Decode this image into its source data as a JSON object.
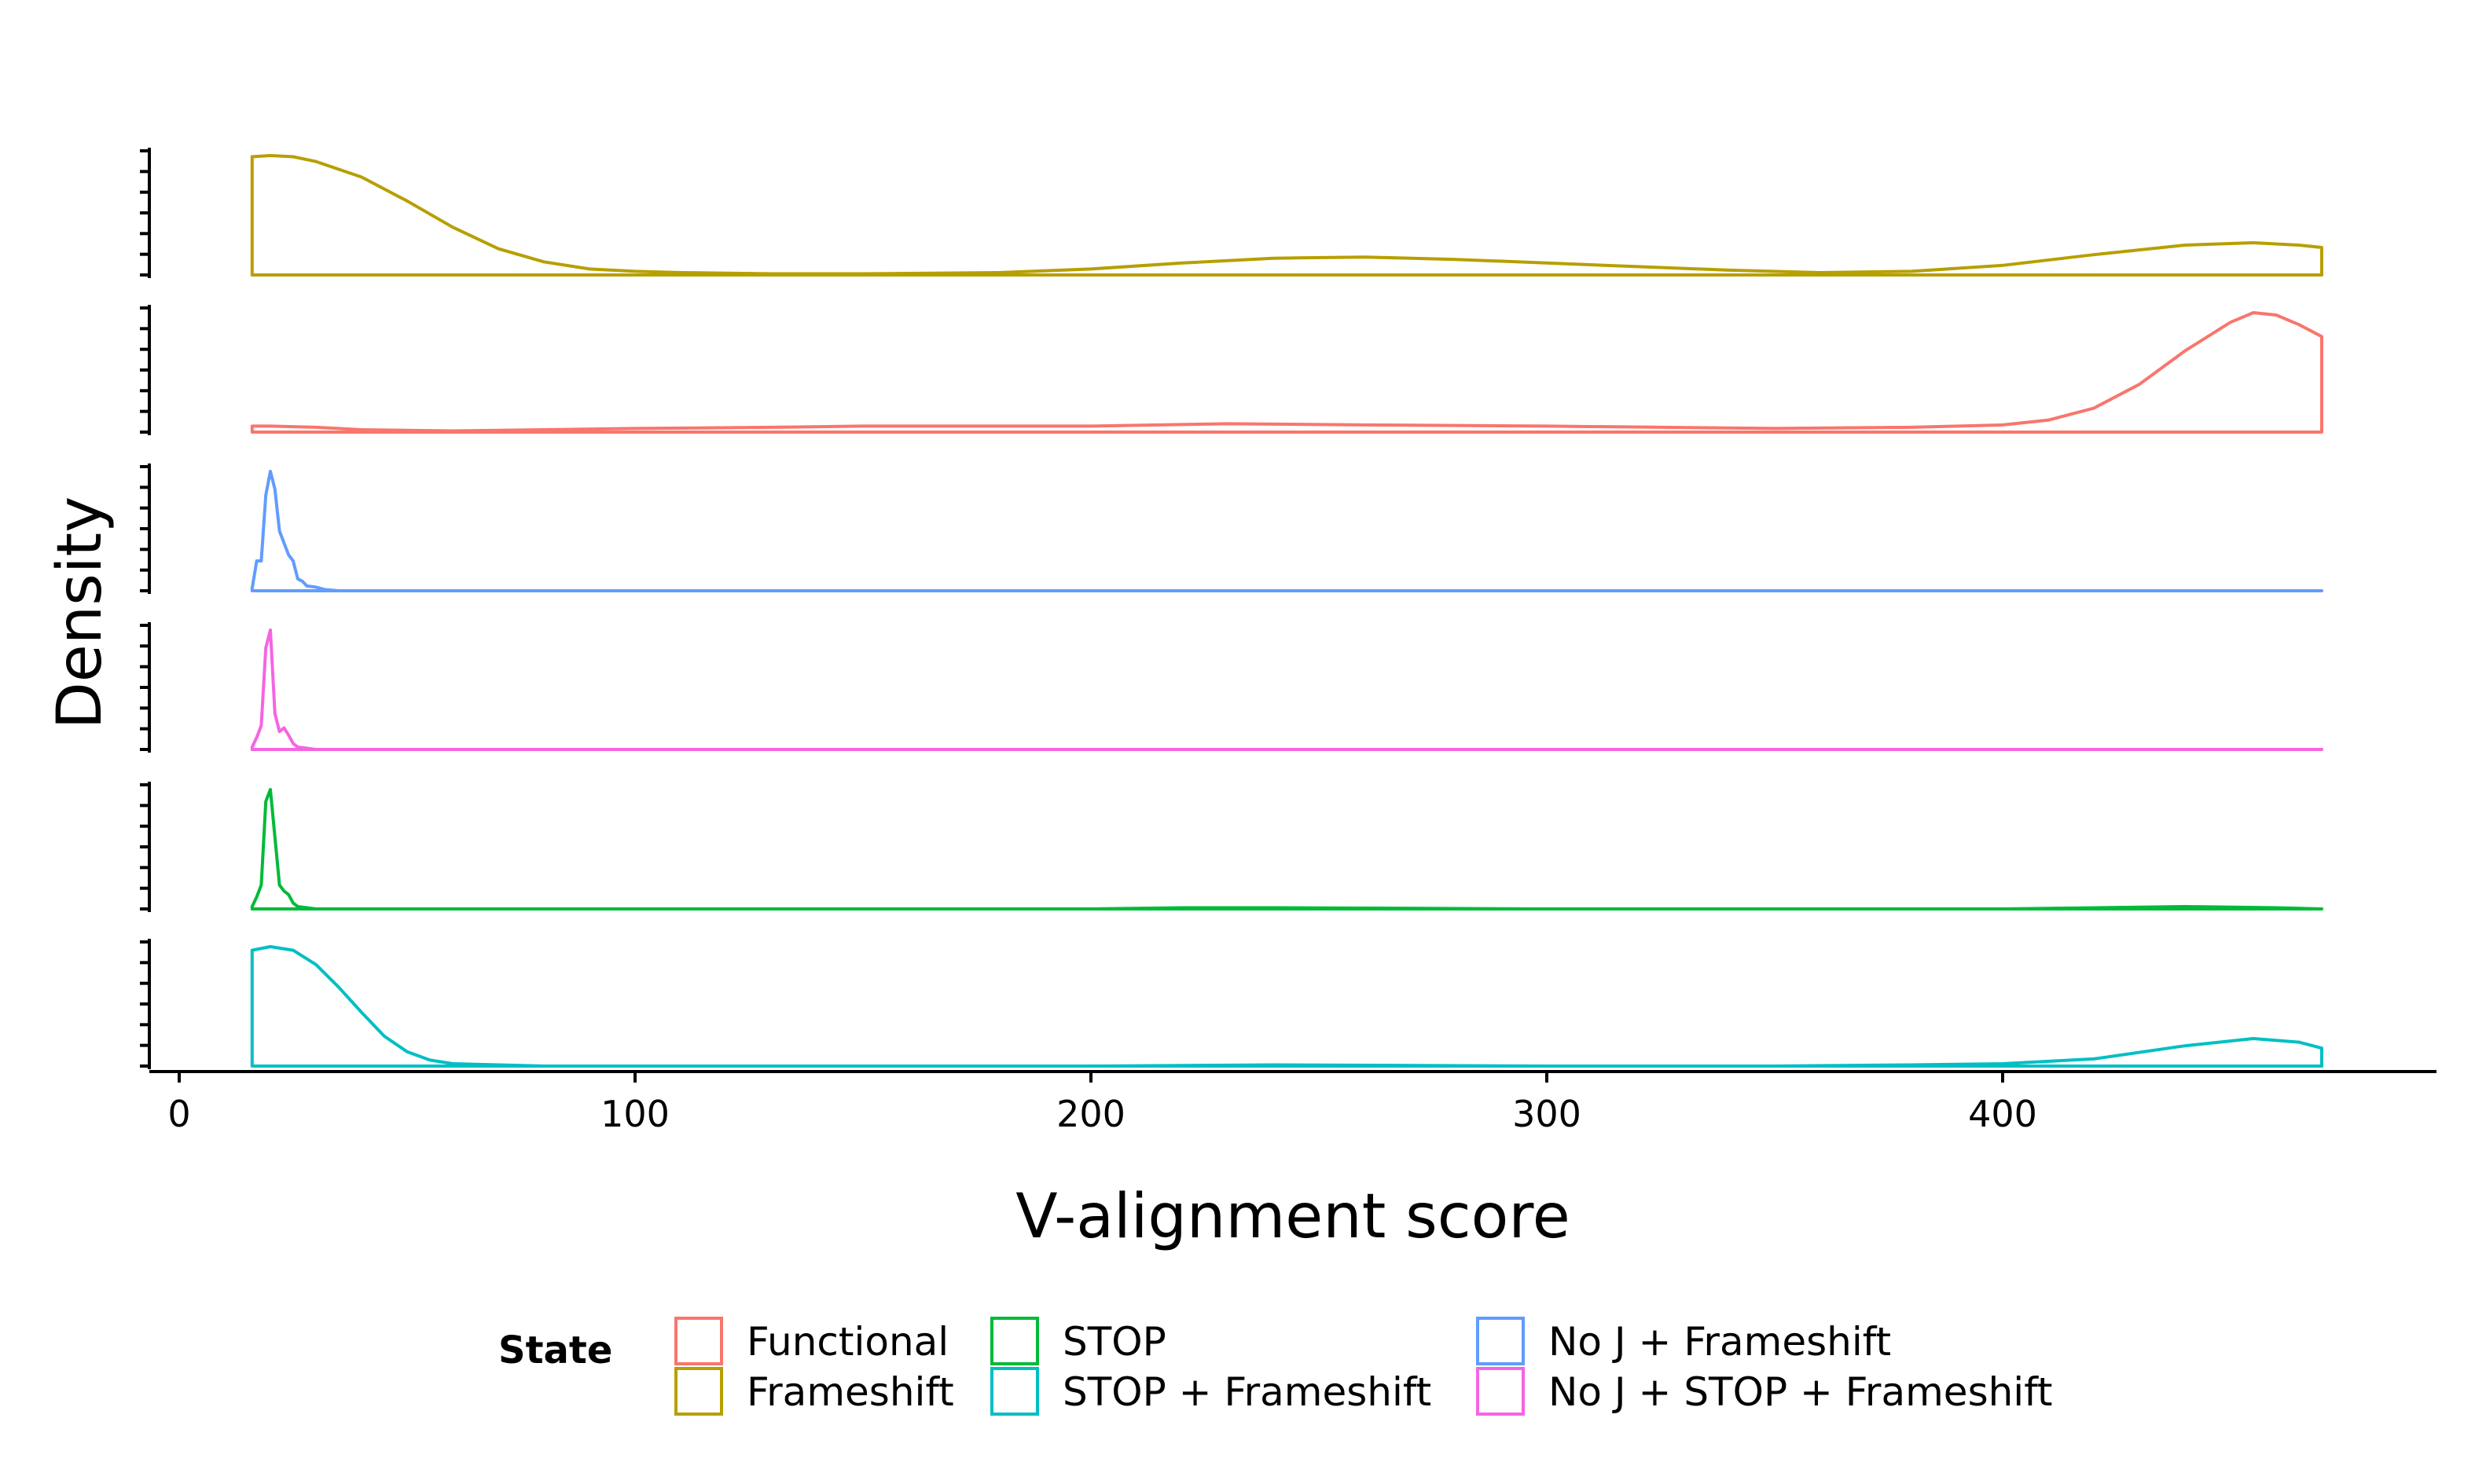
{
  "chart_data": {
    "type": "ridgeline-density",
    "xlabel": "V-alignment score",
    "ylabel": "Density",
    "xlim": [
      -6,
      492
    ],
    "x_ticks": [
      0,
      100,
      200,
      300,
      400
    ],
    "x_tick_labels": [
      "0",
      "100",
      "200",
      "300",
      "400"
    ],
    "grid": false,
    "legend": {
      "title": "State",
      "position": "bottom",
      "entries": [
        {
          "label": "Functional",
          "color": "#F8766D"
        },
        {
          "label": "Frameshift",
          "color": "#B79F00"
        },
        {
          "label": "STOP",
          "color": "#00BA38"
        },
        {
          "label": "STOP + Frameshift",
          "color": "#00BFC4"
        },
        {
          "label": "No J + Frameshift",
          "color": "#619CFF"
        },
        {
          "label": "No J + STOP + Frameshift",
          "color": "#F564E3"
        }
      ]
    },
    "series": [
      {
        "name": "Frameshift",
        "color": "#B79F00",
        "x": [
          16,
          20,
          25,
          30,
          40,
          50,
          60,
          70,
          80,
          90,
          100,
          110,
          130,
          150,
          180,
          200,
          220,
          240,
          260,
          280,
          300,
          320,
          340,
          360,
          380,
          400,
          420,
          440,
          455,
          465,
          470
        ],
        "y": [
          0.99,
          1.0,
          0.99,
          0.95,
          0.82,
          0.62,
          0.4,
          0.22,
          0.11,
          0.05,
          0.03,
          0.02,
          0.01,
          0.01,
          0.02,
          0.05,
          0.1,
          0.14,
          0.15,
          0.13,
          0.1,
          0.07,
          0.04,
          0.02,
          0.03,
          0.08,
          0.17,
          0.25,
          0.27,
          0.25,
          0.23
        ]
      },
      {
        "name": "Functional",
        "color": "#F8766D",
        "x": [
          16,
          20,
          30,
          40,
          60,
          80,
          100,
          130,
          150,
          200,
          230,
          260,
          300,
          350,
          380,
          400,
          410,
          420,
          430,
          440,
          450,
          455,
          460,
          465,
          470
        ],
        "y": [
          0.05,
          0.05,
          0.04,
          0.02,
          0.01,
          0.02,
          0.03,
          0.04,
          0.05,
          0.05,
          0.07,
          0.06,
          0.05,
          0.03,
          0.04,
          0.06,
          0.1,
          0.2,
          0.4,
          0.68,
          0.92,
          1.0,
          0.98,
          0.9,
          0.8
        ]
      },
      {
        "name": "No J + Frameshift",
        "color": "#619CFF",
        "x": [
          16,
          17,
          18,
          19,
          20,
          21,
          22,
          23,
          24,
          25,
          26,
          27,
          28,
          30,
          32,
          35,
          40,
          60,
          100,
          200,
          300,
          400,
          470
        ],
        "y": [
          0.02,
          0.25,
          0.25,
          0.8,
          1.0,
          0.85,
          0.5,
          0.4,
          0.3,
          0.25,
          0.1,
          0.08,
          0.04,
          0.03,
          0.01,
          0.0,
          0.0,
          0.0,
          0.0,
          0.0,
          0.0,
          0.0,
          0.0
        ]
      },
      {
        "name": "No J + STOP + Frameshift",
        "color": "#F564E3",
        "x": [
          16,
          17,
          18,
          19,
          20,
          21,
          22,
          23,
          24,
          25,
          26,
          28,
          30,
          35,
          40,
          60,
          100,
          200,
          300,
          400,
          470
        ],
        "y": [
          0.02,
          0.1,
          0.2,
          0.85,
          1.0,
          0.3,
          0.15,
          0.18,
          0.12,
          0.05,
          0.02,
          0.01,
          0.0,
          0.0,
          0.0,
          0.0,
          0.0,
          0.0,
          0.0,
          0.0,
          0.0
        ]
      },
      {
        "name": "STOP",
        "color": "#00BA38",
        "x": [
          16,
          17,
          18,
          19,
          20,
          21,
          22,
          23,
          24,
          25,
          26,
          28,
          30,
          35,
          40,
          60,
          100,
          200,
          220,
          240,
          300,
          400,
          440,
          460,
          470
        ],
        "y": [
          0.02,
          0.1,
          0.2,
          0.9,
          1.0,
          0.6,
          0.2,
          0.15,
          0.12,
          0.05,
          0.02,
          0.01,
          0.0,
          0.0,
          0.0,
          0.0,
          0.0,
          0.0,
          0.01,
          0.01,
          0.0,
          0.0,
          0.02,
          0.01,
          0.0
        ]
      },
      {
        "name": "STOP + Frameshift",
        "color": "#00BFC4",
        "x": [
          16,
          20,
          25,
          30,
          35,
          40,
          45,
          50,
          55,
          60,
          70,
          80,
          100,
          150,
          200,
          240,
          300,
          350,
          380,
          400,
          420,
          440,
          455,
          465,
          470
        ],
        "y": [
          0.97,
          1.0,
          0.97,
          0.85,
          0.66,
          0.45,
          0.25,
          0.12,
          0.05,
          0.02,
          0.01,
          0.0,
          0.0,
          0.0,
          0.0,
          0.01,
          0.0,
          0.0,
          0.01,
          0.02,
          0.06,
          0.17,
          0.23,
          0.2,
          0.15
        ]
      }
    ]
  }
}
